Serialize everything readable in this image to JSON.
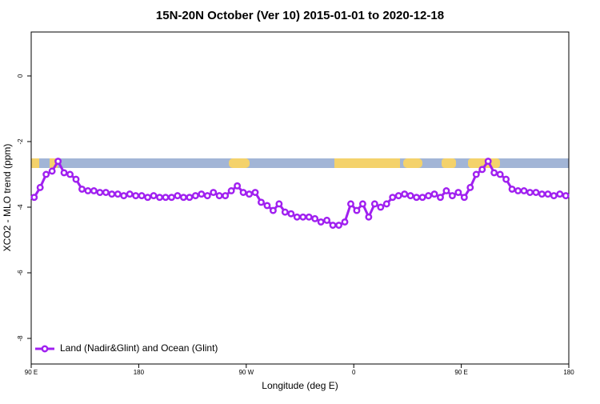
{
  "chart_data": {
    "type": "line",
    "title": "15N-20N October (Ver 10)   2015-01-01 to 2020-12-18",
    "x_label": "Longitude (deg E)",
    "y_label": "XCO2 - MLO trend (ppm)",
    "legend_position": "bottom-left",
    "xlim": [
      90,
      540
    ],
    "ylim": [
      -8.78,
      1.34
    ],
    "xticks": [
      {
        "value": 90,
        "label": "90 E"
      },
      180,
      {
        "value": 270,
        "label": "90 W"
      },
      {
        "value": 360,
        "label": "0"
      },
      {
        "value": 450,
        "label": "90 E"
      },
      {
        "value": 540,
        "label": "180"
      }
    ],
    "yticks": [
      0,
      -2,
      -4,
      -6,
      -8
    ],
    "x": [
      92.5,
      97.5,
      102.5,
      107.5,
      112.5,
      117.5,
      122.5,
      127.5,
      132.5,
      137.5,
      142.5,
      147.5,
      152.5,
      157.5,
      162.5,
      167.5,
      172.5,
      177.5,
      182.5,
      187.5,
      192.5,
      197.5,
      202.5,
      207.5,
      212.5,
      217.5,
      222.5,
      227.5,
      232.5,
      237.5,
      242.5,
      247.5,
      252.5,
      257.5,
      262.5,
      267.5,
      272.5,
      277.5,
      282.5,
      287.5,
      292.5,
      297.5,
      302.5,
      307.5,
      312.5,
      317.5,
      322.5,
      327.5,
      332.5,
      337.5,
      342.5,
      347.5,
      352.5,
      357.5,
      362.5,
      367.5,
      372.5,
      377.5,
      382.5,
      387.5,
      392.5,
      397.5,
      402.5,
      407.5,
      412.5,
      417.5,
      422.5,
      427.5,
      432.5,
      437.5,
      442.5,
      447.5,
      452.5,
      457.5,
      462.5,
      467.5,
      472.5,
      477.5,
      482.5,
      487.5,
      492.5,
      497.5,
      502.5,
      507.5,
      512.5,
      517.5,
      522.5,
      527.5,
      532.5,
      537.5
    ],
    "series": [
      {
        "name": "Land (Nadir&Glint) and Ocean (Glint)",
        "color": "#a020f0",
        "values": [
          -3.7,
          -3.4,
          -3.0,
          -2.9,
          -2.6,
          -2.95,
          -3.0,
          -3.15,
          -3.45,
          -3.5,
          -3.5,
          -3.55,
          -3.55,
          -3.6,
          -3.6,
          -3.65,
          -3.6,
          -3.65,
          -3.65,
          -3.7,
          -3.65,
          -3.7,
          -3.7,
          -3.7,
          -3.65,
          -3.7,
          -3.7,
          -3.65,
          -3.6,
          -3.65,
          -3.55,
          -3.65,
          -3.65,
          -3.5,
          -3.35,
          -3.55,
          -3.6,
          -3.55,
          -3.85,
          -3.95,
          -4.1,
          -3.9,
          -4.15,
          -4.2,
          -4.3,
          -4.3,
          -4.3,
          -4.35,
          -4.45,
          -4.4,
          -4.55,
          -4.55,
          -4.45,
          -3.9,
          -4.1,
          -3.9,
          -4.3,
          -3.9,
          -4.0,
          -3.9,
          -3.7,
          -3.65,
          -3.6,
          -3.65,
          -3.7,
          -3.7,
          -3.65,
          -3.6,
          -3.7,
          -3.5,
          -3.65,
          -3.55,
          -3.7,
          -3.4,
          -3.0,
          -2.85,
          -2.6,
          -2.95,
          -3.0,
          -3.15,
          -3.45,
          -3.5,
          -3.5,
          -3.55,
          -3.55,
          -3.6,
          -3.6,
          -3.65,
          -3.6,
          -3.65
        ]
      }
    ]
  }
}
